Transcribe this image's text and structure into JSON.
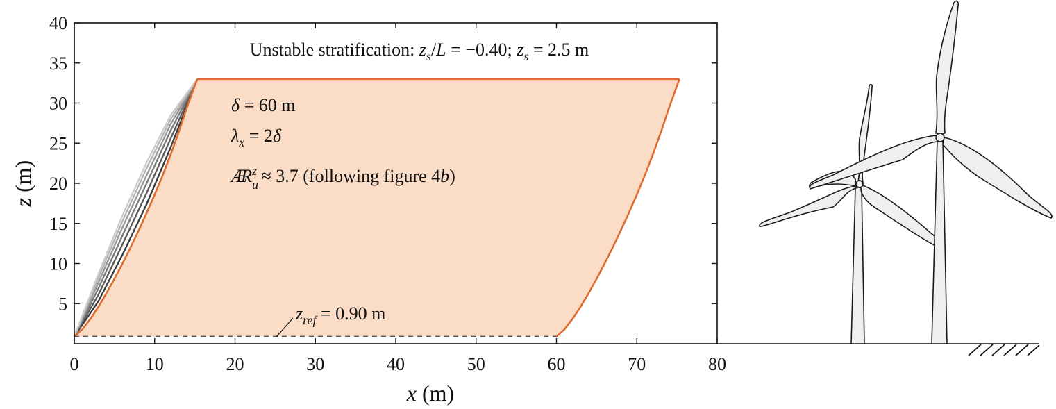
{
  "chart_data": {
    "type": "area",
    "title_parts": [
      "Unstable stratification: ",
      "z",
      "s",
      "/",
      "L",
      " = −0.40; ",
      "z",
      "s",
      " = 2.5 m"
    ],
    "xlabel_parts": [
      "x",
      " (m)"
    ],
    "ylabel_parts": [
      "z",
      " (m)"
    ],
    "xlim": [
      0,
      80
    ],
    "ylim": [
      0,
      40
    ],
    "x_ticks": [
      0,
      10,
      20,
      30,
      40,
      50,
      60,
      70,
      80
    ],
    "y_ticks": [
      5,
      10,
      15,
      20,
      25,
      30,
      35,
      40
    ],
    "x_tick_labels": [
      "0",
      "10",
      "20",
      "30",
      "40",
      "50",
      "60",
      "70",
      "80"
    ],
    "y_tick_labels": [
      "5",
      "10",
      "15",
      "20",
      "25",
      "30",
      "35",
      "40"
    ],
    "grid": false,
    "annotations": {
      "delta": {
        "parts": [
          "δ",
          " = 60 m"
        ]
      },
      "lambda": {
        "parts": [
          "λ",
          "x",
          " = 2",
          "δ"
        ]
      },
      "ar": {
        "parts": [
          "Æ",
          "R",
          "u",
          "z",
          " ≈ 3.7 (following figure 4",
          "b",
          ")"
        ]
      },
      "zref": {
        "parts": [
          "z",
          "ref",
          " = 0.90 m"
        ]
      }
    },
    "z_ref": 0.9,
    "z_top": 33,
    "delta": 60,
    "front_profile": {
      "x": [
        0,
        1,
        2,
        3,
        4,
        5,
        6,
        7,
        8,
        9,
        10,
        11,
        12,
        13,
        14,
        15.3
      ],
      "z": [
        0.9,
        1.8,
        3.1,
        4.6,
        6.3,
        8.1,
        10.0,
        12.0,
        14.1,
        16.3,
        18.6,
        21.0,
        23.6,
        26.4,
        29.4,
        33.0
      ]
    },
    "rear_profile_offset": 60,
    "fan_profiles": [
      {
        "x": [
          0,
          3,
          6,
          9,
          12,
          15.3
        ],
        "z": [
          0.9,
          5.3,
          11.1,
          17.4,
          24.5,
          33.0
        ]
      },
      {
        "x": [
          0,
          3,
          6,
          9,
          12,
          15.3
        ],
        "z": [
          0.9,
          6.1,
          12.4,
          18.8,
          25.6,
          33.0
        ]
      },
      {
        "x": [
          0,
          3,
          6,
          9,
          12,
          15.3
        ],
        "z": [
          0.9,
          6.9,
          13.5,
          20.0,
          26.6,
          33.0
        ]
      },
      {
        "x": [
          0,
          3,
          6,
          9,
          12,
          15.3
        ],
        "z": [
          0.9,
          7.6,
          14.5,
          21.0,
          27.4,
          33.0
        ]
      },
      {
        "x": [
          0,
          3,
          6,
          9,
          12,
          15.3
        ],
        "z": [
          0.9,
          8.2,
          15.3,
          21.9,
          28.0,
          33.0
        ]
      },
      {
        "x": [
          0,
          3,
          6,
          9,
          12,
          15.3
        ],
        "z": [
          0.9,
          8.7,
          16.0,
          22.6,
          28.5,
          33.0
        ]
      }
    ],
    "colors": {
      "fill": "#fbdcc6",
      "outline": "#e06a2c",
      "fan": [
        "#3a3a3a",
        "#5a5a5a",
        "#7a7a7a",
        "#999999",
        "#b5b5b5",
        "#cccccc"
      ],
      "ref_line": "#555555",
      "turbine_fill": "#eeefee",
      "turbine_stroke": "#1a1a1a"
    },
    "turbine_icon": "wind-turbine-icon",
    "ground_icon": "ground-hatch-icon"
  }
}
